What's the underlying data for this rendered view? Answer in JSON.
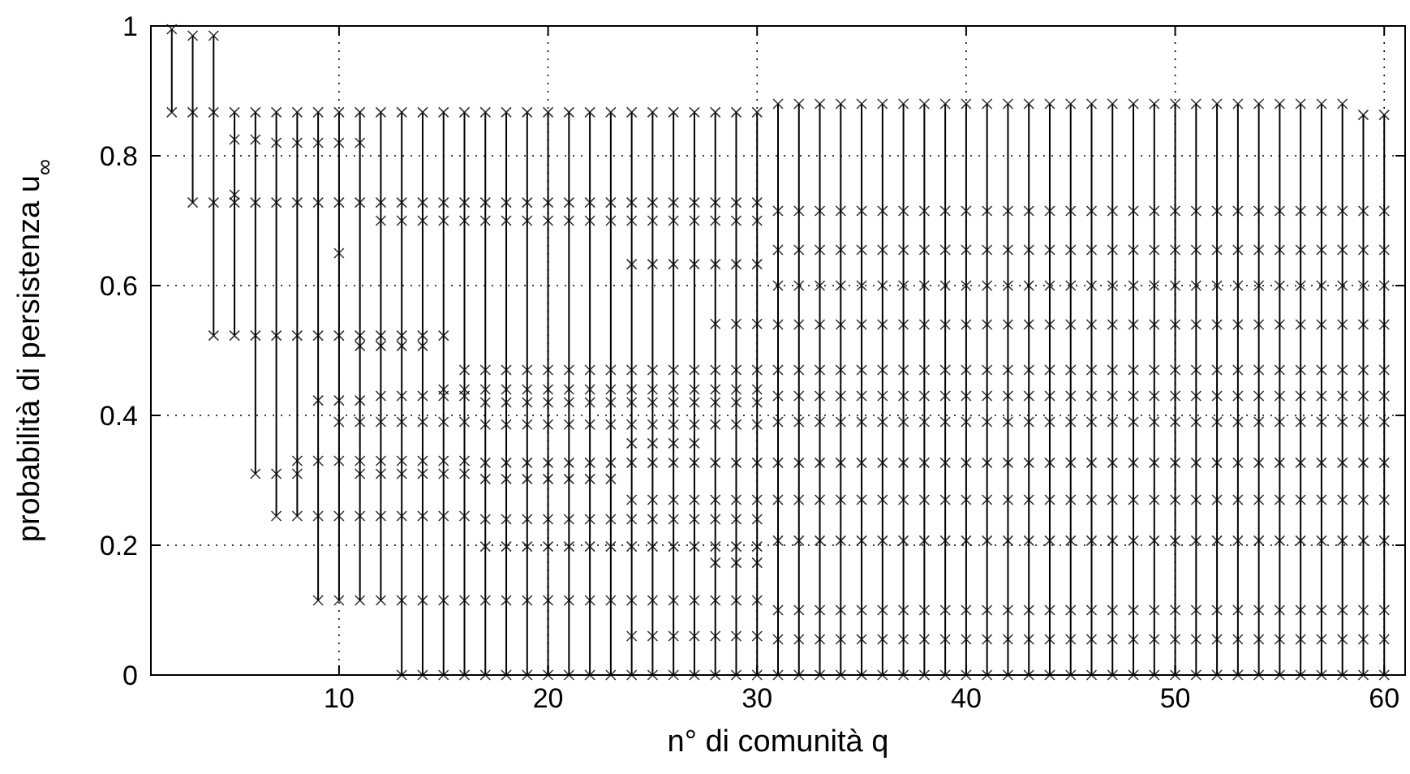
{
  "chart_data": {
    "type": "line",
    "xlabel": "n° di comunità q",
    "ylabel": "probabilità di persistenza u$_{∞}$",
    "xlim": [
      1,
      61
    ],
    "ylim": [
      0,
      1
    ],
    "xticks": [
      10,
      20,
      30,
      40,
      50,
      60
    ],
    "yticks": [
      0,
      0.2,
      0.4,
      0.6,
      0.8,
      1
    ],
    "grid": true,
    "marker": "cross",
    "line_style": "solid",
    "series": [
      {
        "color": "#000000",
        "x": [
          2,
          2
        ],
        "values": [
          0.995,
          0.867
        ]
      },
      {
        "color": "#000000",
        "x": [
          3,
          3,
          3
        ],
        "values": [
          0.985,
          0.867,
          0.728
        ]
      },
      {
        "color": "#000000",
        "x": [
          4,
          4,
          4,
          4
        ],
        "values": [
          0.985,
          0.867,
          0.728,
          0.523
        ]
      },
      {
        "color": "#000000",
        "x": [
          5,
          5,
          5,
          5,
          5
        ],
        "values": [
          0.867,
          0.825,
          0.74,
          0.728,
          0.523
        ]
      },
      {
        "color": "#000000",
        "x": [
          6,
          6,
          6,
          6,
          6
        ],
        "values": [
          0.867,
          0.825,
          0.728,
          0.523,
          0.31
        ]
      },
      {
        "color": "#000000",
        "x": [
          7,
          7,
          7,
          7,
          7,
          7
        ],
        "values": [
          0.867,
          0.82,
          0.728,
          0.523,
          0.31,
          0.245
        ]
      },
      {
        "color": "#000000",
        "x": [
          8,
          8,
          8,
          8,
          8,
          8,
          8
        ],
        "values": [
          0.867,
          0.82,
          0.728,
          0.523,
          0.33,
          0.31,
          0.245
        ]
      },
      {
        "color": "#000000",
        "x": [
          9,
          9,
          9,
          9,
          9,
          9,
          9,
          9
        ],
        "values": [
          0.867,
          0.82,
          0.728,
          0.523,
          0.423,
          0.33,
          0.245,
          0.115
        ]
      },
      {
        "color": "#000000",
        "x": [
          10,
          10,
          10,
          10,
          10,
          10,
          10,
          10,
          10,
          10
        ],
        "values": [
          0.867,
          0.82,
          0.728,
          0.65,
          0.523,
          0.423,
          0.39,
          0.33,
          0.245,
          0.115
        ]
      },
      {
        "color": "#000000",
        "x": [
          11,
          11,
          11,
          11,
          11,
          11,
          11,
          11,
          11,
          11,
          11
        ],
        "values": [
          0.867,
          0.82,
          0.728,
          0.523,
          0.507,
          0.423,
          0.39,
          0.33,
          0.31,
          0.245,
          0.115
        ]
      },
      {
        "color": "#000000",
        "x": [
          12,
          12,
          12,
          12,
          12,
          12,
          12,
          12,
          12,
          12,
          12
        ],
        "values": [
          0.867,
          0.728,
          0.7,
          0.523,
          0.507,
          0.43,
          0.39,
          0.33,
          0.31,
          0.245,
          0.115
        ]
      },
      {
        "color": "#000000",
        "x": [
          13,
          13,
          13,
          13,
          13,
          13,
          13,
          13,
          13,
          13,
          13,
          13
        ],
        "values": [
          0.867,
          0.728,
          0.7,
          0.523,
          0.507,
          0.43,
          0.39,
          0.33,
          0.31,
          0.245,
          0.115,
          0
        ]
      },
      {
        "color": "#000000",
        "x": [
          14,
          14,
          14,
          14,
          14,
          14,
          14,
          14,
          14,
          14,
          14,
          14
        ],
        "values": [
          0.867,
          0.728,
          0.7,
          0.523,
          0.507,
          0.43,
          0.39,
          0.33,
          0.31,
          0.245,
          0.115,
          0
        ]
      },
      {
        "color": "#000000",
        "x": [
          15,
          15,
          15,
          15,
          15,
          15,
          15,
          15,
          15,
          15,
          15,
          15
        ],
        "values": [
          0.867,
          0.728,
          0.7,
          0.523,
          0.44,
          0.43,
          0.39,
          0.33,
          0.31,
          0.245,
          0.115,
          0
        ]
      },
      {
        "color": "#000000",
        "x": [
          16,
          16,
          16,
          16,
          16,
          16,
          16,
          16,
          16,
          16,
          16,
          16
        ],
        "values": [
          0.867,
          0.728,
          0.7,
          0.47,
          0.44,
          0.43,
          0.39,
          0.33,
          0.31,
          0.245,
          0.115,
          0
        ]
      },
      {
        "color": "#000000",
        "x": [
          17,
          17,
          17,
          17,
          17,
          17,
          17,
          17,
          17,
          17,
          17,
          17,
          17
        ],
        "values": [
          0.867,
          0.728,
          0.7,
          0.47,
          0.44,
          0.42,
          0.386,
          0.327,
          0.302,
          0.24,
          0.198,
          0.115,
          0
        ]
      },
      {
        "color": "#000000",
        "x": [
          18,
          18,
          18,
          18,
          18,
          18,
          18,
          18,
          18,
          18,
          18,
          18,
          18
        ],
        "values": [
          0.867,
          0.728,
          0.7,
          0.47,
          0.44,
          0.42,
          0.386,
          0.327,
          0.302,
          0.24,
          0.198,
          0.115,
          0
        ]
      },
      {
        "color": "#000000",
        "x": [
          19,
          19,
          19,
          19,
          19,
          19,
          19,
          19,
          19,
          19,
          19,
          19,
          19
        ],
        "values": [
          0.867,
          0.728,
          0.7,
          0.47,
          0.44,
          0.42,
          0.386,
          0.327,
          0.302,
          0.24,
          0.198,
          0.115,
          0
        ]
      },
      {
        "color": "#000000",
        "x": [
          20,
          20,
          20,
          20,
          20,
          20,
          20,
          20,
          20,
          20,
          20,
          20,
          20
        ],
        "values": [
          0.867,
          0.728,
          0.7,
          0.47,
          0.44,
          0.42,
          0.386,
          0.327,
          0.302,
          0.24,
          0.198,
          0.115,
          0
        ]
      },
      {
        "color": "#000000",
        "x": [
          21,
          21,
          21,
          21,
          21,
          21,
          21,
          21,
          21,
          21,
          21,
          21,
          21
        ],
        "values": [
          0.867,
          0.728,
          0.7,
          0.47,
          0.44,
          0.42,
          0.386,
          0.327,
          0.302,
          0.24,
          0.198,
          0.115,
          0
        ]
      },
      {
        "color": "#000000",
        "x": [
          22,
          22,
          22,
          22,
          22,
          22,
          22,
          22,
          22,
          22,
          22,
          22,
          22
        ],
        "values": [
          0.867,
          0.728,
          0.7,
          0.47,
          0.44,
          0.42,
          0.386,
          0.327,
          0.302,
          0.24,
          0.198,
          0.115,
          0
        ]
      },
      {
        "color": "#000000",
        "x": [
          23,
          23,
          23,
          23,
          23,
          23,
          23,
          23,
          23,
          23,
          23,
          23,
          23
        ],
        "values": [
          0.867,
          0.728,
          0.7,
          0.47,
          0.44,
          0.42,
          0.386,
          0.327,
          0.302,
          0.24,
          0.198,
          0.115,
          0
        ]
      },
      {
        "color": "#000000",
        "x": [
          24,
          24,
          24,
          24,
          24,
          24,
          24,
          24,
          24,
          24,
          24,
          24,
          24,
          24,
          24,
          24
        ],
        "values": [
          0.867,
          0.728,
          0.7,
          0.633,
          0.47,
          0.44,
          0.42,
          0.386,
          0.357,
          0.327,
          0.27,
          0.24,
          0.198,
          0.115,
          0.06,
          0
        ]
      },
      {
        "color": "#000000",
        "x": [
          25,
          25,
          25,
          25,
          25,
          25,
          25,
          25,
          25,
          25,
          25,
          25,
          25,
          25,
          25,
          25
        ],
        "values": [
          0.867,
          0.728,
          0.7,
          0.633,
          0.47,
          0.44,
          0.42,
          0.386,
          0.357,
          0.327,
          0.27,
          0.24,
          0.198,
          0.115,
          0.06,
          0
        ]
      },
      {
        "color": "#000000",
        "x": [
          26,
          26,
          26,
          26,
          26,
          26,
          26,
          26,
          26,
          26,
          26,
          26,
          26,
          26,
          26,
          26
        ],
        "values": [
          0.867,
          0.728,
          0.7,
          0.633,
          0.47,
          0.44,
          0.42,
          0.386,
          0.357,
          0.327,
          0.27,
          0.24,
          0.198,
          0.115,
          0.06,
          0
        ]
      },
      {
        "color": "#000000",
        "x": [
          27,
          27,
          27,
          27,
          27,
          27,
          27,
          27,
          27,
          27,
          27,
          27,
          27,
          27,
          27,
          27
        ],
        "values": [
          0.867,
          0.728,
          0.7,
          0.633,
          0.47,
          0.44,
          0.42,
          0.386,
          0.357,
          0.327,
          0.27,
          0.24,
          0.198,
          0.115,
          0.06,
          0
        ]
      },
      {
        "color": "#000000",
        "x": [
          28,
          28,
          28,
          28,
          28,
          28,
          28,
          28,
          28,
          28,
          28,
          28,
          28,
          28,
          28,
          28,
          28
        ],
        "values": [
          0.867,
          0.728,
          0.7,
          0.633,
          0.541,
          0.47,
          0.44,
          0.42,
          0.386,
          0.327,
          0.27,
          0.24,
          0.198,
          0.173,
          0.115,
          0.06,
          0
        ]
      },
      {
        "color": "#000000",
        "x": [
          29,
          29,
          29,
          29,
          29,
          29,
          29,
          29,
          29,
          29,
          29,
          29,
          29,
          29,
          29,
          29,
          29
        ],
        "values": [
          0.867,
          0.728,
          0.7,
          0.633,
          0.541,
          0.47,
          0.44,
          0.42,
          0.386,
          0.327,
          0.27,
          0.24,
          0.198,
          0.173,
          0.115,
          0.06,
          0
        ]
      },
      {
        "color": "#000000",
        "x": [
          30,
          30,
          30,
          30,
          30,
          30,
          30,
          30,
          30,
          30,
          30,
          30,
          30,
          30,
          30,
          30,
          30
        ],
        "values": [
          0.867,
          0.728,
          0.7,
          0.633,
          0.541,
          0.47,
          0.44,
          0.42,
          0.386,
          0.327,
          0.27,
          0.24,
          0.198,
          0.173,
          0.115,
          0.06,
          0
        ]
      },
      {
        "color": "#000000",
        "x": [
          31,
          31,
          31,
          31,
          31,
          31,
          31,
          31,
          31,
          31,
          31,
          31,
          31,
          31
        ],
        "values": [
          0.88,
          0.715,
          0.655,
          0.6,
          0.54,
          0.47,
          0.43,
          0.39,
          0.327,
          0.27,
          0.207,
          0.1,
          0.055,
          0
        ]
      },
      {
        "color": "#000000",
        "x": [
          32,
          32,
          32,
          32,
          32,
          32,
          32,
          32,
          32,
          32,
          32,
          32,
          32,
          32
        ],
        "values": [
          0.88,
          0.715,
          0.655,
          0.6,
          0.54,
          0.47,
          0.43,
          0.39,
          0.327,
          0.27,
          0.207,
          0.1,
          0.055,
          0
        ]
      },
      {
        "color": "#000000",
        "x": [
          33,
          33,
          33,
          33,
          33,
          33,
          33,
          33,
          33,
          33,
          33,
          33,
          33,
          33
        ],
        "values": [
          0.88,
          0.715,
          0.655,
          0.6,
          0.54,
          0.47,
          0.43,
          0.39,
          0.327,
          0.27,
          0.207,
          0.1,
          0.055,
          0
        ]
      },
      {
        "color": "#000000",
        "x": [
          34,
          34,
          34,
          34,
          34,
          34,
          34,
          34,
          34,
          34,
          34,
          34,
          34,
          34
        ],
        "values": [
          0.88,
          0.715,
          0.655,
          0.6,
          0.54,
          0.47,
          0.43,
          0.39,
          0.327,
          0.27,
          0.207,
          0.1,
          0.055,
          0
        ]
      },
      {
        "color": "#000000",
        "x": [
          35,
          35,
          35,
          35,
          35,
          35,
          35,
          35,
          35,
          35,
          35,
          35,
          35,
          35
        ],
        "values": [
          0.88,
          0.715,
          0.655,
          0.6,
          0.54,
          0.47,
          0.43,
          0.39,
          0.327,
          0.27,
          0.207,
          0.1,
          0.055,
          0
        ]
      },
      {
        "color": "#000000",
        "x": [
          36,
          36,
          36,
          36,
          36,
          36,
          36,
          36,
          36,
          36,
          36,
          36,
          36,
          36
        ],
        "values": [
          0.88,
          0.715,
          0.655,
          0.6,
          0.54,
          0.47,
          0.43,
          0.39,
          0.327,
          0.27,
          0.207,
          0.1,
          0.055,
          0
        ]
      },
      {
        "color": "#000000",
        "x": [
          37,
          37,
          37,
          37,
          37,
          37,
          37,
          37,
          37,
          37,
          37,
          37,
          37,
          37
        ],
        "values": [
          0.88,
          0.715,
          0.655,
          0.6,
          0.54,
          0.47,
          0.43,
          0.39,
          0.327,
          0.27,
          0.207,
          0.1,
          0.055,
          0
        ]
      },
      {
        "color": "#000000",
        "x": [
          38,
          38,
          38,
          38,
          38,
          38,
          38,
          38,
          38,
          38,
          38,
          38,
          38,
          38
        ],
        "values": [
          0.88,
          0.715,
          0.655,
          0.6,
          0.54,
          0.47,
          0.43,
          0.39,
          0.327,
          0.27,
          0.207,
          0.1,
          0.055,
          0
        ]
      },
      {
        "color": "#000000",
        "x": [
          39,
          39,
          39,
          39,
          39,
          39,
          39,
          39,
          39,
          39,
          39,
          39,
          39,
          39
        ],
        "values": [
          0.88,
          0.715,
          0.655,
          0.6,
          0.54,
          0.47,
          0.43,
          0.39,
          0.327,
          0.27,
          0.207,
          0.1,
          0.055,
          0
        ]
      },
      {
        "color": "#000000",
        "x": [
          40,
          40,
          40,
          40,
          40,
          40,
          40,
          40,
          40,
          40,
          40,
          40,
          40,
          40
        ],
        "values": [
          0.88,
          0.715,
          0.655,
          0.6,
          0.54,
          0.47,
          0.43,
          0.39,
          0.327,
          0.27,
          0.207,
          0.1,
          0.055,
          0
        ]
      },
      {
        "color": "#000000",
        "x": [
          41,
          41,
          41,
          41,
          41,
          41,
          41,
          41,
          41,
          41,
          41,
          41,
          41,
          41
        ],
        "values": [
          0.88,
          0.715,
          0.655,
          0.6,
          0.54,
          0.47,
          0.43,
          0.39,
          0.327,
          0.27,
          0.207,
          0.1,
          0.055,
          0
        ]
      },
      {
        "color": "#000000",
        "x": [
          42,
          42,
          42,
          42,
          42,
          42,
          42,
          42,
          42,
          42,
          42,
          42,
          42,
          42
        ],
        "values": [
          0.88,
          0.715,
          0.655,
          0.6,
          0.54,
          0.47,
          0.43,
          0.39,
          0.327,
          0.27,
          0.207,
          0.1,
          0.055,
          0
        ]
      },
      {
        "color": "#000000",
        "x": [
          43,
          43,
          43,
          43,
          43,
          43,
          43,
          43,
          43,
          43,
          43,
          43,
          43,
          43
        ],
        "values": [
          0.88,
          0.715,
          0.655,
          0.6,
          0.54,
          0.47,
          0.43,
          0.39,
          0.327,
          0.27,
          0.207,
          0.1,
          0.055,
          0
        ]
      },
      {
        "color": "#000000",
        "x": [
          44,
          44,
          44,
          44,
          44,
          44,
          44,
          44,
          44,
          44,
          44,
          44,
          44,
          44
        ],
        "values": [
          0.88,
          0.715,
          0.655,
          0.6,
          0.54,
          0.47,
          0.43,
          0.39,
          0.327,
          0.27,
          0.207,
          0.1,
          0.055,
          0
        ]
      },
      {
        "color": "#000000",
        "x": [
          45,
          45,
          45,
          45,
          45,
          45,
          45,
          45,
          45,
          45,
          45,
          45,
          45,
          45
        ],
        "values": [
          0.88,
          0.715,
          0.655,
          0.6,
          0.54,
          0.47,
          0.43,
          0.39,
          0.327,
          0.27,
          0.207,
          0.1,
          0.055,
          0
        ]
      },
      {
        "color": "#000000",
        "x": [
          46,
          46,
          46,
          46,
          46,
          46,
          46,
          46,
          46,
          46,
          46,
          46,
          46,
          46
        ],
        "values": [
          0.88,
          0.715,
          0.655,
          0.6,
          0.54,
          0.47,
          0.43,
          0.39,
          0.327,
          0.27,
          0.207,
          0.1,
          0.055,
          0
        ]
      },
      {
        "color": "#000000",
        "x": [
          47,
          47,
          47,
          47,
          47,
          47,
          47,
          47,
          47,
          47,
          47,
          47,
          47,
          47
        ],
        "values": [
          0.88,
          0.715,
          0.655,
          0.6,
          0.54,
          0.47,
          0.43,
          0.39,
          0.327,
          0.27,
          0.207,
          0.1,
          0.055,
          0
        ]
      },
      {
        "color": "#000000",
        "x": [
          48,
          48,
          48,
          48,
          48,
          48,
          48,
          48,
          48,
          48,
          48,
          48,
          48,
          48
        ],
        "values": [
          0.88,
          0.715,
          0.655,
          0.6,
          0.54,
          0.47,
          0.43,
          0.39,
          0.327,
          0.27,
          0.207,
          0.1,
          0.055,
          0
        ]
      },
      {
        "color": "#000000",
        "x": [
          49,
          49,
          49,
          49,
          49,
          49,
          49,
          49,
          49,
          49,
          49,
          49,
          49,
          49
        ],
        "values": [
          0.88,
          0.715,
          0.655,
          0.6,
          0.54,
          0.47,
          0.43,
          0.39,
          0.327,
          0.27,
          0.207,
          0.1,
          0.055,
          0
        ]
      },
      {
        "color": "#000000",
        "x": [
          50,
          50,
          50,
          50,
          50,
          50,
          50,
          50,
          50,
          50,
          50,
          50,
          50,
          50
        ],
        "values": [
          0.88,
          0.715,
          0.655,
          0.6,
          0.54,
          0.47,
          0.43,
          0.39,
          0.327,
          0.27,
          0.207,
          0.1,
          0.055,
          0
        ]
      },
      {
        "color": "#000000",
        "x": [
          51,
          51,
          51,
          51,
          51,
          51,
          51,
          51,
          51,
          51,
          51,
          51,
          51,
          51
        ],
        "values": [
          0.88,
          0.715,
          0.655,
          0.6,
          0.54,
          0.47,
          0.43,
          0.39,
          0.327,
          0.27,
          0.207,
          0.1,
          0.055,
          0
        ]
      },
      {
        "color": "#000000",
        "x": [
          52,
          52,
          52,
          52,
          52,
          52,
          52,
          52,
          52,
          52,
          52,
          52,
          52,
          52
        ],
        "values": [
          0.88,
          0.715,
          0.655,
          0.6,
          0.54,
          0.47,
          0.43,
          0.39,
          0.327,
          0.27,
          0.207,
          0.1,
          0.055,
          0
        ]
      },
      {
        "color": "#000000",
        "x": [
          53,
          53,
          53,
          53,
          53,
          53,
          53,
          53,
          53,
          53,
          53,
          53,
          53,
          53
        ],
        "values": [
          0.88,
          0.715,
          0.655,
          0.6,
          0.54,
          0.47,
          0.43,
          0.39,
          0.327,
          0.27,
          0.207,
          0.1,
          0.055,
          0
        ]
      },
      {
        "color": "#000000",
        "x": [
          54,
          54,
          54,
          54,
          54,
          54,
          54,
          54,
          54,
          54,
          54,
          54,
          54,
          54
        ],
        "values": [
          0.88,
          0.715,
          0.655,
          0.6,
          0.54,
          0.47,
          0.43,
          0.39,
          0.327,
          0.27,
          0.207,
          0.1,
          0.055,
          0
        ]
      },
      {
        "color": "#000000",
        "x": [
          55,
          55,
          55,
          55,
          55,
          55,
          55,
          55,
          55,
          55,
          55,
          55,
          55,
          55
        ],
        "values": [
          0.88,
          0.715,
          0.655,
          0.6,
          0.54,
          0.47,
          0.43,
          0.39,
          0.327,
          0.27,
          0.207,
          0.1,
          0.055,
          0
        ]
      },
      {
        "color": "#000000",
        "x": [
          56,
          56,
          56,
          56,
          56,
          56,
          56,
          56,
          56,
          56,
          56,
          56,
          56,
          56
        ],
        "values": [
          0.88,
          0.715,
          0.655,
          0.6,
          0.54,
          0.47,
          0.43,
          0.39,
          0.327,
          0.27,
          0.207,
          0.1,
          0.055,
          0
        ]
      },
      {
        "color": "#000000",
        "x": [
          57,
          57,
          57,
          57,
          57,
          57,
          57,
          57,
          57,
          57,
          57,
          57,
          57,
          57
        ],
        "values": [
          0.88,
          0.715,
          0.655,
          0.6,
          0.54,
          0.47,
          0.43,
          0.39,
          0.327,
          0.27,
          0.207,
          0.1,
          0.055,
          0
        ]
      },
      {
        "color": "#000000",
        "x": [
          58,
          58,
          58,
          58,
          58,
          58,
          58,
          58,
          58,
          58,
          58,
          58,
          58,
          58
        ],
        "values": [
          0.88,
          0.715,
          0.655,
          0.6,
          0.54,
          0.47,
          0.43,
          0.39,
          0.327,
          0.27,
          0.207,
          0.1,
          0.055,
          0
        ]
      },
      {
        "color": "#000000",
        "x": [
          59,
          59,
          59,
          59,
          59,
          59,
          59,
          59,
          59,
          59,
          59,
          59,
          59,
          59
        ],
        "values": [
          0.863,
          0.715,
          0.655,
          0.6,
          0.54,
          0.47,
          0.43,
          0.39,
          0.327,
          0.27,
          0.207,
          0.1,
          0.055,
          0
        ]
      },
      {
        "color": "#000000",
        "x": [
          60,
          60,
          60,
          60,
          60,
          60,
          60,
          60,
          60,
          60,
          60,
          60,
          60,
          60
        ],
        "values": [
          0.863,
          0.715,
          0.655,
          0.6,
          0.54,
          0.47,
          0.43,
          0.39,
          0.327,
          0.27,
          0.207,
          0.1,
          0.055,
          0
        ]
      }
    ]
  }
}
